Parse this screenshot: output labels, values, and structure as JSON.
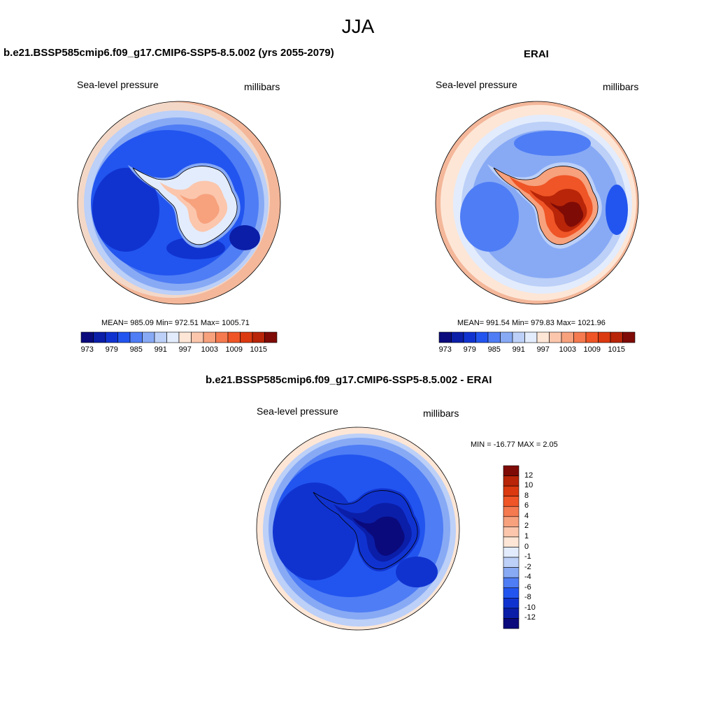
{
  "figure": {
    "title": "JJA"
  },
  "panels": [
    {
      "title": "b.e21.BSSP585cmip6.f09_g17.CMIP6-SSP5-8.5.002 (yrs 2055-2079)",
      "variable": "Sea-level pressure",
      "units": "millibars",
      "stats": "MEAN= 985.09  Min= 972.51  Max= 1005.71"
    },
    {
      "title": "ERAI",
      "variable": "Sea-level pressure",
      "units": "millibars",
      "stats": "MEAN= 991.54  Min= 979.83  Max= 1021.96"
    },
    {
      "title": "b.e21.BSSP585cmip6.f09_g17.CMIP6-SSP5-8.5.002 - ERAI",
      "variable": "Sea-level pressure",
      "units": "millibars",
      "stats": "MIN = -16.77 MAX =   2.05"
    }
  ],
  "colorbar_top": {
    "tick_labels": [
      "973",
      "979",
      "985",
      "991",
      "997",
      "1003",
      "1009",
      "1015"
    ],
    "colors": [
      "#0a0a7c",
      "#0b1ea8",
      "#1033d0",
      "#2255ef",
      "#4f7df5",
      "#88aaf5",
      "#bcd0f8",
      "#e3ecfc",
      "#fde6d6",
      "#fbc6ac",
      "#f7a17d",
      "#f57a4f",
      "#ef5526",
      "#db3910",
      "#b82508",
      "#7f0b06"
    ]
  },
  "colorbar_diff": {
    "tick_labels": [
      "12",
      "10",
      "8",
      "6",
      "4",
      "2",
      "1",
      "0",
      "-1",
      "-2",
      "-4",
      "-6",
      "-8",
      "-10",
      "-12"
    ],
    "colors": [
      "#7f0b06",
      "#b82508",
      "#db3910",
      "#ef5526",
      "#f57a4f",
      "#f7a17d",
      "#fbc6ac",
      "#fde6d6",
      "#e3ecfc",
      "#bcd0f8",
      "#88aaf5",
      "#4f7df5",
      "#2255ef",
      "#1033d0",
      "#0b1ea8",
      "#0a0a7c"
    ]
  }
}
